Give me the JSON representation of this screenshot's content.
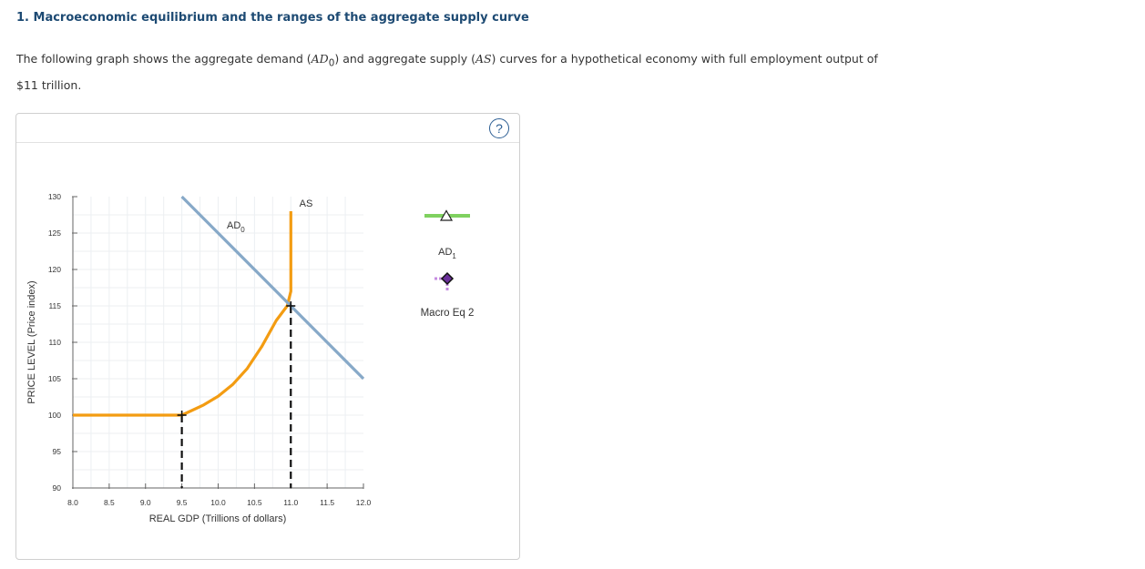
{
  "question": {
    "title": "1. Macroeconomic equilibrium and the ranges of the aggregate supply curve",
    "text_part1": "The following graph shows the aggregate demand (",
    "ad_symbol": "AD",
    "ad_sub": "0",
    "text_part2": ") and aggregate supply (",
    "as_symbol": "AS",
    "text_part3": ") curves for a hypothetical economy with full employment output of $11 trillion."
  },
  "help_button": {
    "label": "?"
  },
  "palette": {
    "tools": {
      "ad1_label": "AD",
      "ad1_sub": "1",
      "macro_eq_label": "Macro Eq 2",
      "ad1_color": "#7fd15f",
      "macro_eq_color": "#6a2f9a"
    }
  },
  "chart_data": {
    "type": "line",
    "xlabel": "REAL GDP (Trillions of dollars)",
    "ylabel": "PRICE LEVEL (Price index)",
    "xlim": [
      8.0,
      12.0
    ],
    "ylim": [
      90,
      130
    ],
    "x_ticks": [
      "8.0",
      "8.5",
      "9.0",
      "9.5",
      "10.0",
      "10.5",
      "11.0",
      "11.5",
      "12.0"
    ],
    "y_ticks": [
      "90",
      "95",
      "100",
      "105",
      "110",
      "115",
      "120",
      "125",
      "130"
    ],
    "grid": true,
    "series": [
      {
        "name": "AD",
        "name_sub": "0",
        "color": "#87a9c8",
        "points": [
          [
            9.5,
            130
          ],
          [
            12.0,
            105
          ]
        ]
      },
      {
        "name": "AS",
        "color": "#f39c12",
        "points": [
          [
            8.0,
            100
          ],
          [
            9.4,
            100
          ],
          [
            9.5,
            100
          ],
          [
            9.8,
            101.4
          ],
          [
            10.0,
            102.6
          ],
          [
            10.2,
            104.2
          ],
          [
            10.4,
            106.4
          ],
          [
            10.6,
            109.4
          ],
          [
            10.8,
            113.0
          ],
          [
            10.95,
            115
          ],
          [
            11.0,
            117
          ],
          [
            11.0,
            128
          ]
        ]
      }
    ],
    "points": [
      {
        "x": 9.5,
        "y": 100
      },
      {
        "x": 11.0,
        "y": 115
      }
    ],
    "dropline_color": "#111111"
  }
}
